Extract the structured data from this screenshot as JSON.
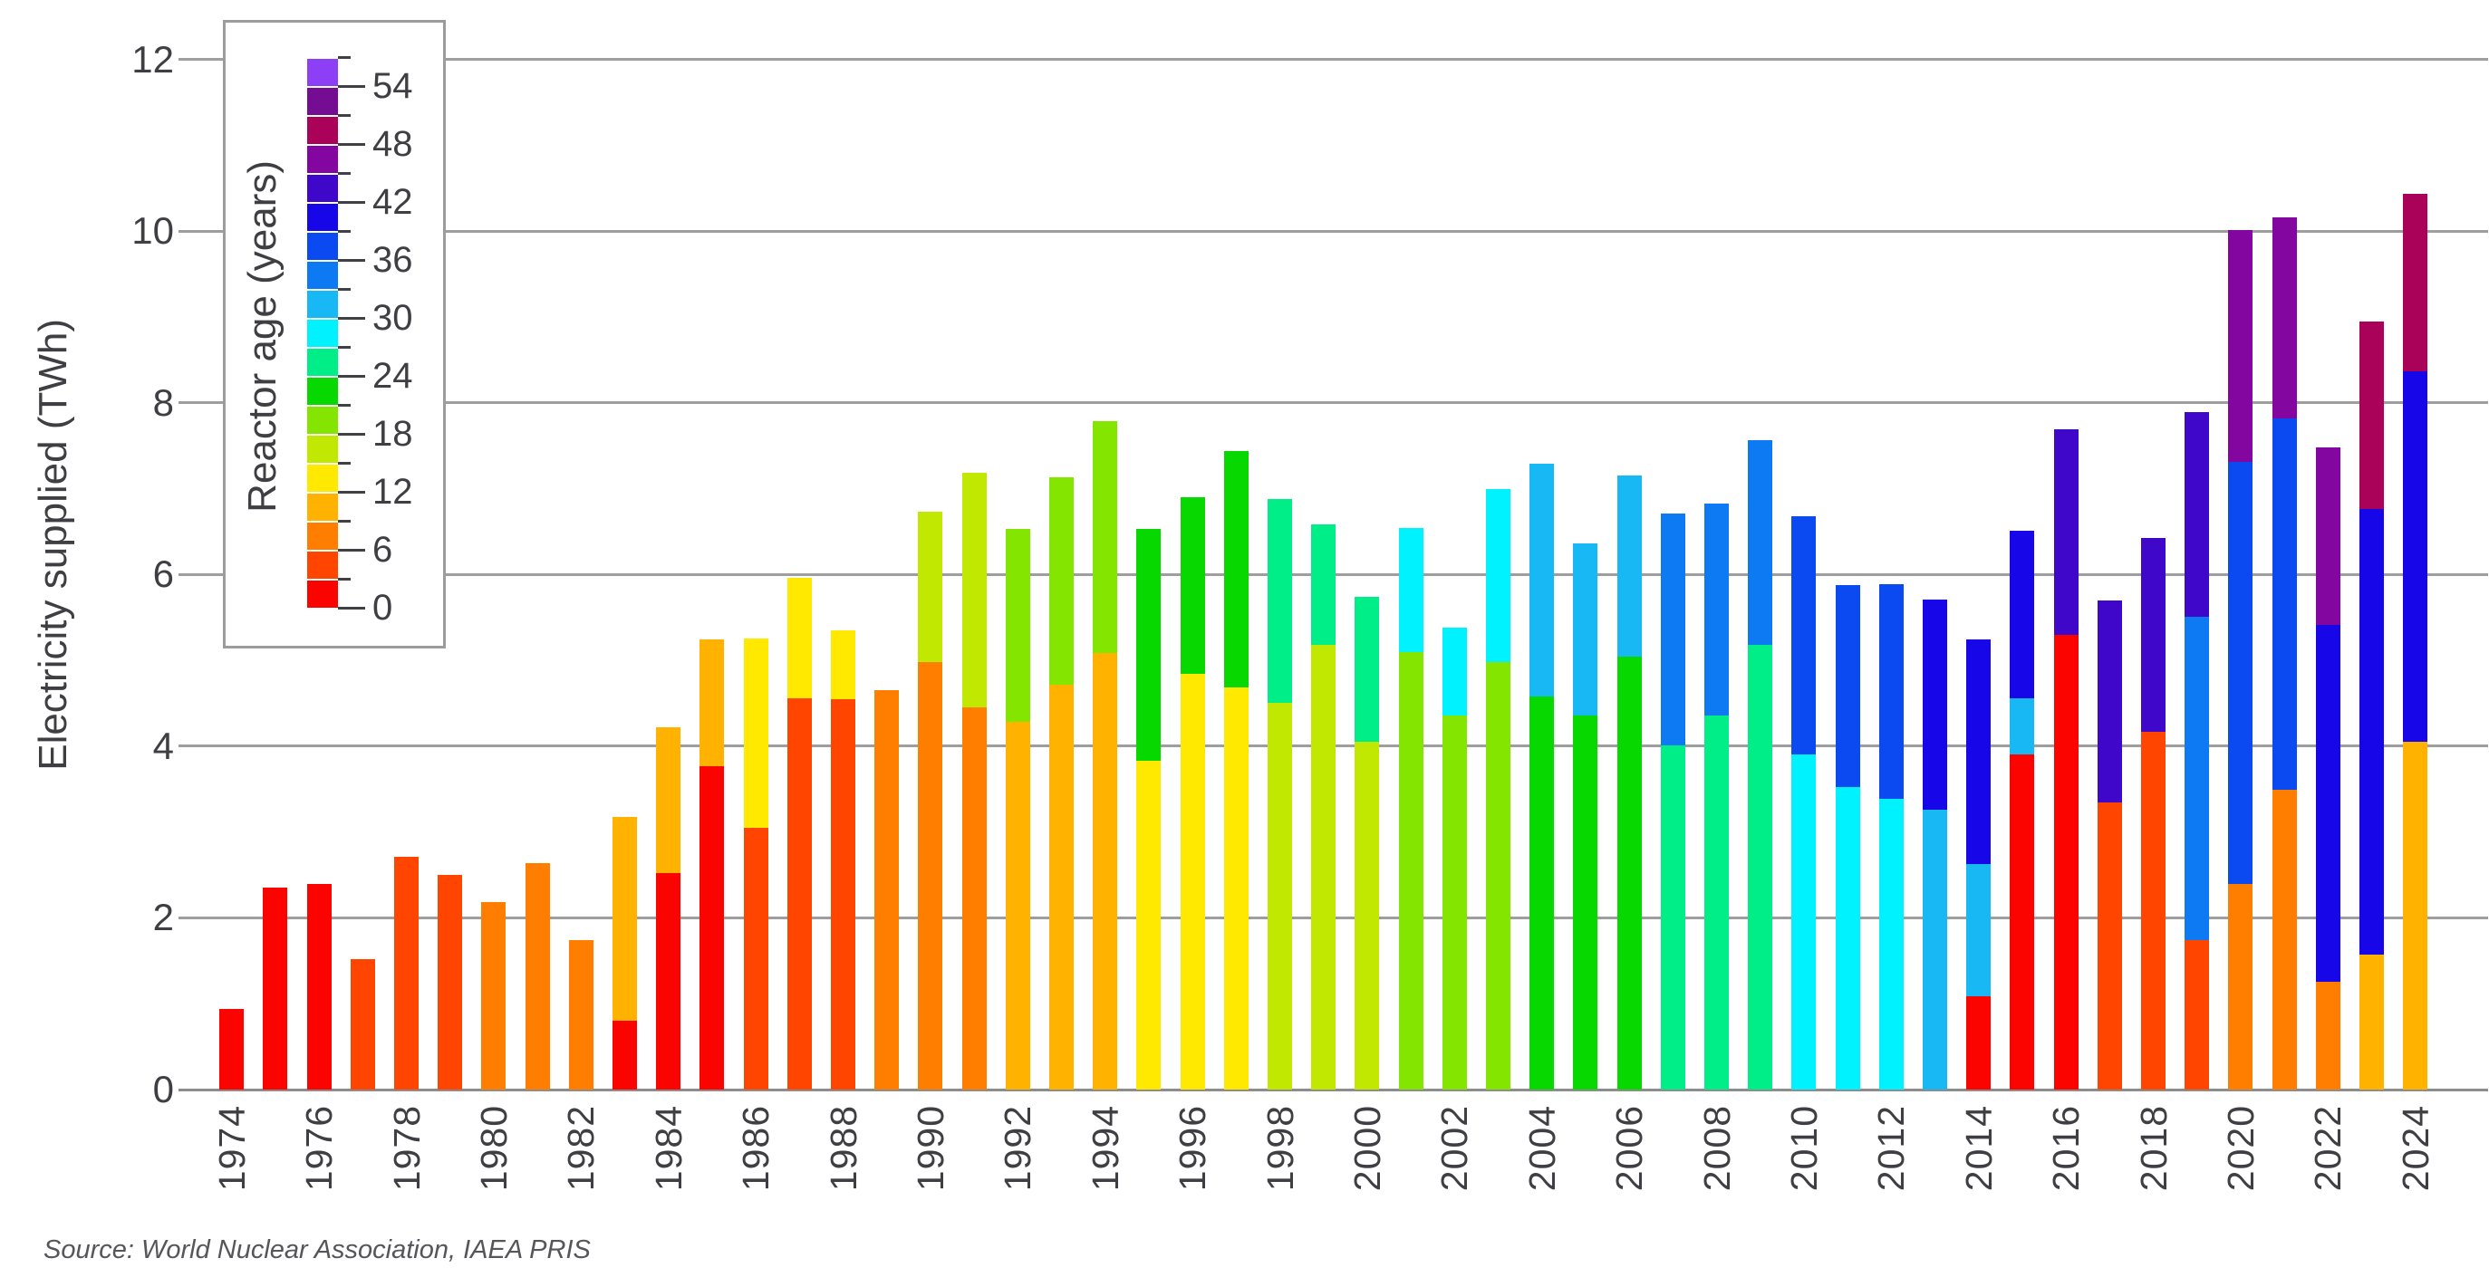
{
  "y_axis": {
    "title": "Electricity supplied (TWh)",
    "ticks": [
      0,
      2,
      4,
      6,
      8,
      10,
      12
    ],
    "range": [
      0,
      12
    ]
  },
  "x_axis": {
    "first_year": 1974,
    "last_year": 2024,
    "tick_labels": [
      "1974",
      "1976",
      "1978",
      "1980",
      "1982",
      "1984",
      "1986",
      "1988",
      "1990",
      "1992",
      "1994",
      "1996",
      "1998",
      "2000",
      "2002",
      "2004",
      "2006",
      "2008",
      "2010",
      "2012",
      "2014",
      "2016",
      "2018",
      "2020",
      "2022",
      "2024"
    ]
  },
  "legend": {
    "title": "Reactor age (years)",
    "tick_step": 3,
    "labeled_ticks": [
      "0",
      "6",
      "12",
      "18",
      "24",
      "30",
      "36",
      "42",
      "48",
      "54"
    ],
    "max_boundary": 57,
    "bands_bottom_to_top": [
      "0-2",
      "3-5",
      "6-8",
      "9-11",
      "12-14",
      "15-17",
      "18-20",
      "21-23",
      "24-26",
      "27-29",
      "30-32",
      "33-35",
      "36-38",
      "39-41",
      "42-44",
      "45-47",
      "48-50",
      "51-53",
      "54-56"
    ]
  },
  "source": "Source: World Nuclear Association, IAEA PRIS",
  "chart_data": {
    "type": "bar",
    "subtype": "stacked",
    "title": "",
    "xlabel": "",
    "ylabel": "Electricity supplied (TWh)",
    "ylim": [
      0,
      12
    ],
    "grid": true,
    "legend_position": "upper-left",
    "palette": {
      "0-2": "#fb0400",
      "3-5": "#ff4500",
      "6-8": "#ff7e00",
      "9-11": "#ffb200",
      "12-14": "#ffe900",
      "15-17": "#c0e800",
      "18-20": "#84e600",
      "21-23": "#06d800",
      "24-26": "#00ee87",
      "27-29": "#00f2ff",
      "30-32": "#18b8f5",
      "33-35": "#0d79f2",
      "36-38": "#0b4af0",
      "39-41": "#1707e8",
      "42-44": "#3e07c9",
      "45-47": "#8306a0",
      "48-50": "#a90258",
      "51-53": "#750d93",
      "54-56": "#8c3ff5"
    },
    "bars": [
      {
        "year": 1974,
        "segments": [
          {
            "band": "0-2",
            "value": 0.94
          }
        ]
      },
      {
        "year": 1975,
        "segments": [
          {
            "band": "0-2",
            "value": 2.35
          }
        ]
      },
      {
        "year": 1976,
        "segments": [
          {
            "band": "0-2",
            "value": 2.4
          }
        ]
      },
      {
        "year": 1977,
        "segments": [
          {
            "band": "3-5",
            "value": 1.52
          }
        ]
      },
      {
        "year": 1978,
        "segments": [
          {
            "band": "3-5",
            "value": 2.71
          }
        ]
      },
      {
        "year": 1979,
        "segments": [
          {
            "band": "3-5",
            "value": 2.5
          }
        ]
      },
      {
        "year": 1980,
        "segments": [
          {
            "band": "6-8",
            "value": 2.18
          }
        ]
      },
      {
        "year": 1981,
        "segments": [
          {
            "band": "6-8",
            "value": 2.64
          }
        ]
      },
      {
        "year": 1982,
        "segments": [
          {
            "band": "6-8",
            "value": 1.74
          }
        ]
      },
      {
        "year": 1983,
        "segments": [
          {
            "band": "0-2",
            "value": 0.8
          },
          {
            "band": "9-11",
            "value": 2.38
          }
        ]
      },
      {
        "year": 1984,
        "segments": [
          {
            "band": "0-2",
            "value": 2.52
          },
          {
            "band": "9-11",
            "value": 1.7
          }
        ]
      },
      {
        "year": 1985,
        "segments": [
          {
            "band": "0-2",
            "value": 3.77
          },
          {
            "band": "9-11",
            "value": 1.47
          }
        ]
      },
      {
        "year": 1986,
        "segments": [
          {
            "band": "3-5",
            "value": 3.05
          },
          {
            "band": "12-14",
            "value": 2.2
          }
        ]
      },
      {
        "year": 1987,
        "segments": [
          {
            "band": "3-5",
            "value": 4.56
          },
          {
            "band": "12-14",
            "value": 1.4
          }
        ]
      },
      {
        "year": 1988,
        "segments": [
          {
            "band": "3-5",
            "value": 4.55
          },
          {
            "band": "12-14",
            "value": 0.8
          }
        ]
      },
      {
        "year": 1989,
        "segments": [
          {
            "band": "6-8",
            "value": 4.65
          }
        ]
      },
      {
        "year": 1990,
        "segments": [
          {
            "band": "6-8",
            "value": 4.98
          },
          {
            "band": "15-17",
            "value": 1.75
          }
        ]
      },
      {
        "year": 1991,
        "segments": [
          {
            "band": "6-8",
            "value": 4.45
          },
          {
            "band": "15-17",
            "value": 2.74
          }
        ]
      },
      {
        "year": 1992,
        "segments": [
          {
            "band": "9-11",
            "value": 4.28
          },
          {
            "band": "18-20",
            "value": 2.25
          }
        ]
      },
      {
        "year": 1993,
        "segments": [
          {
            "band": "9-11",
            "value": 4.72
          },
          {
            "band": "18-20",
            "value": 2.41
          }
        ]
      },
      {
        "year": 1994,
        "segments": [
          {
            "band": "9-11",
            "value": 5.09
          },
          {
            "band": "18-20",
            "value": 2.7
          }
        ]
      },
      {
        "year": 1995,
        "segments": [
          {
            "band": "12-14",
            "value": 3.83
          },
          {
            "band": "21-23",
            "value": 2.7
          }
        ]
      },
      {
        "year": 1996,
        "segments": [
          {
            "band": "12-14",
            "value": 4.84
          },
          {
            "band": "21-23",
            "value": 2.06
          }
        ]
      },
      {
        "year": 1997,
        "segments": [
          {
            "band": "12-14",
            "value": 4.68
          },
          {
            "band": "21-23",
            "value": 2.76
          }
        ]
      },
      {
        "year": 1998,
        "segments": [
          {
            "band": "15-17",
            "value": 4.5
          },
          {
            "band": "24-26",
            "value": 2.38
          }
        ]
      },
      {
        "year": 1999,
        "segments": [
          {
            "band": "15-17",
            "value": 5.18
          },
          {
            "band": "24-26",
            "value": 1.4
          }
        ]
      },
      {
        "year": 2000,
        "segments": [
          {
            "band": "15-17",
            "value": 4.05
          },
          {
            "band": "24-26",
            "value": 1.69
          }
        ]
      },
      {
        "year": 2001,
        "segments": [
          {
            "band": "18-20",
            "value": 5.1
          },
          {
            "band": "27-29",
            "value": 1.44
          }
        ]
      },
      {
        "year": 2002,
        "segments": [
          {
            "band": "18-20",
            "value": 4.36
          },
          {
            "band": "27-29",
            "value": 1.02
          }
        ]
      },
      {
        "year": 2003,
        "segments": [
          {
            "band": "18-20",
            "value": 4.98
          },
          {
            "band": "27-29",
            "value": 2.02
          }
        ]
      },
      {
        "year": 2004,
        "segments": [
          {
            "band": "21-23",
            "value": 4.58
          },
          {
            "band": "30-32",
            "value": 2.71
          }
        ]
      },
      {
        "year": 2005,
        "segments": [
          {
            "band": "21-23",
            "value": 4.36
          },
          {
            "band": "30-32",
            "value": 2.0
          }
        ]
      },
      {
        "year": 2006,
        "segments": [
          {
            "band": "21-23",
            "value": 5.04
          },
          {
            "band": "30-32",
            "value": 2.11
          }
        ]
      },
      {
        "year": 2007,
        "segments": [
          {
            "band": "24-26",
            "value": 4.01
          },
          {
            "band": "33-35",
            "value": 2.7
          }
        ]
      },
      {
        "year": 2008,
        "segments": [
          {
            "band": "24-26",
            "value": 4.36
          },
          {
            "band": "33-35",
            "value": 2.47
          }
        ]
      },
      {
        "year": 2009,
        "segments": [
          {
            "band": "24-26",
            "value": 5.18
          },
          {
            "band": "33-35",
            "value": 2.38
          }
        ]
      },
      {
        "year": 2010,
        "segments": [
          {
            "band": "27-29",
            "value": 3.9
          },
          {
            "band": "36-38",
            "value": 2.78
          }
        ]
      },
      {
        "year": 2011,
        "segments": [
          {
            "band": "27-29",
            "value": 3.52
          },
          {
            "band": "36-38",
            "value": 2.36
          }
        ]
      },
      {
        "year": 2012,
        "segments": [
          {
            "band": "27-29",
            "value": 3.39
          },
          {
            "band": "36-38",
            "value": 2.5
          }
        ]
      },
      {
        "year": 2013,
        "segments": [
          {
            "band": "30-32",
            "value": 3.26
          },
          {
            "band": "39-41",
            "value": 2.45
          }
        ]
      },
      {
        "year": 2014,
        "segments": [
          {
            "band": "0-2",
            "value": 1.09
          },
          {
            "band": "30-32",
            "value": 1.54
          },
          {
            "band": "39-41",
            "value": 2.61
          }
        ]
      },
      {
        "year": 2015,
        "segments": [
          {
            "band": "0-2",
            "value": 3.9
          },
          {
            "band": "30-32",
            "value": 0.66
          },
          {
            "band": "39-41",
            "value": 1.95
          }
        ]
      },
      {
        "year": 2016,
        "segments": [
          {
            "band": "0-2",
            "value": 5.3
          },
          {
            "band": "42-44",
            "value": 2.39
          }
        ]
      },
      {
        "year": 2017,
        "segments": [
          {
            "band": "3-5",
            "value": 3.34
          },
          {
            "band": "42-44",
            "value": 2.36
          }
        ]
      },
      {
        "year": 2018,
        "segments": [
          {
            "band": "3-5",
            "value": 4.17
          },
          {
            "band": "42-44",
            "value": 2.26
          }
        ]
      },
      {
        "year": 2019,
        "segments": [
          {
            "band": "3-5",
            "value": 1.74
          },
          {
            "band": "33-35",
            "value": 3.77
          },
          {
            "band": "42-44",
            "value": 2.38
          }
        ]
      },
      {
        "year": 2020,
        "segments": [
          {
            "band": "6-8",
            "value": 2.4
          },
          {
            "band": "36-38",
            "value": 4.91
          },
          {
            "band": "45-47",
            "value": 2.7
          }
        ]
      },
      {
        "year": 2021,
        "segments": [
          {
            "band": "6-8",
            "value": 3.49
          },
          {
            "band": "36-38",
            "value": 4.33
          },
          {
            "band": "45-47",
            "value": 2.34
          }
        ]
      },
      {
        "year": 2022,
        "segments": [
          {
            "band": "6-8",
            "value": 1.26
          },
          {
            "band": "39-41",
            "value": 4.15
          },
          {
            "band": "45-47",
            "value": 2.07
          }
        ]
      },
      {
        "year": 2023,
        "segments": [
          {
            "band": "9-11",
            "value": 1.57
          },
          {
            "band": "39-41",
            "value": 5.19
          },
          {
            "band": "48-50",
            "value": 2.19
          }
        ]
      },
      {
        "year": 2024,
        "segments": [
          {
            "band": "9-11",
            "value": 4.05
          },
          {
            "band": "39-41",
            "value": 4.32
          },
          {
            "band": "48-50",
            "value": 2.06
          }
        ]
      }
    ]
  }
}
